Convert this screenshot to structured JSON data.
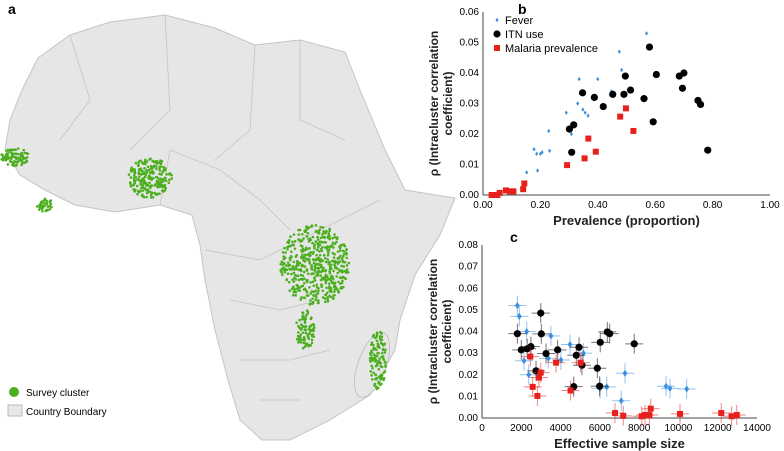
{
  "panel_a": {
    "label": "a",
    "legend": [
      {
        "label": "Survey cluster",
        "color": "#4caf1f"
      },
      {
        "label": "Country Boundary",
        "color": "#e8e8e8"
      }
    ]
  },
  "chart_data": [
    {
      "panel": "b",
      "type": "scatter",
      "xlabel": "Prevalence (proportion)",
      "ylabel": "ρ (Intracluster correlation coefficient)",
      "xlim": [
        0,
        1
      ],
      "ylim": [
        0,
        0.06
      ],
      "xticks": [
        "0.00",
        "0.20",
        "0.40",
        "0.60",
        "0.80",
        "1.00"
      ],
      "yticks": [
        "0.00",
        "0.01",
        "0.02",
        "0.03",
        "0.04",
        "0.05",
        "0.06"
      ],
      "legend_position": "top-left",
      "series": [
        {
          "name": "Fever",
          "color": "#3d8fe0",
          "marker": "diamond",
          "points": [
            [
              0.57,
              0.053
            ],
            [
              0.475,
              0.047
            ],
            [
              0.483,
              0.041
            ],
            [
              0.335,
              0.038
            ],
            [
              0.4,
              0.038
            ],
            [
              0.448,
              0.034
            ],
            [
              0.33,
              0.03
            ],
            [
              0.348,
              0.028
            ],
            [
              0.356,
              0.027
            ],
            [
              0.366,
              0.026
            ],
            [
              0.29,
              0.027
            ],
            [
              0.229,
              0.021
            ],
            [
              0.308,
              0.02
            ],
            [
              0.178,
              0.015
            ],
            [
              0.187,
              0.0135
            ],
            [
              0.2,
              0.0135
            ],
            [
              0.206,
              0.014
            ],
            [
              0.232,
              0.0145
            ],
            [
              0.152,
              0.0074
            ],
            [
              0.19,
              0.008
            ]
          ]
        },
        {
          "name": "ITN use",
          "color": "#000000",
          "marker": "circle",
          "points": [
            [
              0.58,
              0.0485
            ],
            [
              0.496,
              0.039
            ],
            [
              0.604,
              0.0395
            ],
            [
              0.684,
              0.039
            ],
            [
              0.7,
              0.04
            ],
            [
              0.695,
              0.035
            ],
            [
              0.749,
              0.031
            ],
            [
              0.758,
              0.0297
            ],
            [
              0.347,
              0.0335
            ],
            [
              0.388,
              0.032
            ],
            [
              0.452,
              0.033
            ],
            [
              0.491,
              0.033
            ],
            [
              0.514,
              0.0344
            ],
            [
              0.561,
              0.0316
            ],
            [
              0.419,
              0.029
            ],
            [
              0.593,
              0.024
            ],
            [
              0.316,
              0.023
            ],
            [
              0.301,
              0.0216
            ],
            [
              0.309,
              0.014
            ],
            [
              0.783,
              0.0147
            ]
          ]
        },
        {
          "name": "Malaria prevalence",
          "color": "#e8201c",
          "marker": "square",
          "points": [
            [
              0.498,
              0.0284
            ],
            [
              0.478,
              0.0257
            ],
            [
              0.524,
              0.021
            ],
            [
              0.367,
              0.0185
            ],
            [
              0.393,
              0.0142
            ],
            [
              0.354,
              0.012
            ],
            [
              0.293,
              0.0098
            ],
            [
              0.144,
              0.0038
            ],
            [
              0.14,
              0.0019
            ],
            [
              0.03,
              0.0
            ],
            [
              0.05,
              0.0
            ],
            [
              0.058,
              0.0007
            ],
            [
              0.08,
              0.0015
            ],
            [
              0.094,
              0.0012
            ],
            [
              0.106,
              0.0012
            ]
          ]
        }
      ]
    },
    {
      "panel": "c",
      "type": "scatter",
      "xlabel": "Effective sample size",
      "ylabel": "ρ (Intracluster correlation coefficient)",
      "xlim": [
        0,
        14000
      ],
      "ylim": [
        0,
        0.08
      ],
      "xticks": [
        "0",
        "2000",
        "4000",
        "6000",
        "8000",
        "10000",
        "12000",
        "14000"
      ],
      "yticks": [
        "0.00",
        "0.01",
        "0.02",
        "0.03",
        "0.04",
        "0.05",
        "0.06",
        "0.07",
        "0.08"
      ],
      "error_bars": true,
      "series": [
        {
          "color": "#3d8fe0",
          "marker": "diamond",
          "points": [
            [
              1800,
              0.052
            ],
            [
              1900,
              0.047
            ],
            [
              2275,
              0.04
            ],
            [
              3510,
              0.038
            ],
            [
              4480,
              0.034
            ],
            [
              5160,
              0.03
            ],
            [
              2140,
              0.0265
            ],
            [
              3375,
              0.0276
            ],
            [
              4020,
              0.0268
            ],
            [
              2380,
              0.02
            ],
            [
              7280,
              0.0207
            ],
            [
              6010,
              0.0137
            ],
            [
              6350,
              0.0144
            ],
            [
              7090,
              0.008
            ],
            [
              9370,
              0.0147
            ],
            [
              9570,
              0.0137
            ],
            [
              10420,
              0.0134
            ]
          ]
        },
        {
          "color": "#000000",
          "marker": "circle",
          "points": [
            [
              2990,
              0.0485
            ],
            [
              1800,
              0.039
            ],
            [
              3020,
              0.0389
            ],
            [
              6380,
              0.0398
            ],
            [
              6500,
              0.039
            ],
            [
              6020,
              0.035
            ],
            [
              7750,
              0.0343
            ],
            [
              2000,
              0.0315
            ],
            [
              2300,
              0.032
            ],
            [
              2490,
              0.033
            ],
            [
              3850,
              0.0315
            ],
            [
              4940,
              0.0327
            ],
            [
              3260,
              0.0298
            ],
            [
              4800,
              0.029
            ],
            [
              5090,
              0.0244
            ],
            [
              5870,
              0.023
            ],
            [
              2750,
              0.0218
            ],
            [
              4670,
              0.0145
            ],
            [
              5990,
              0.0147
            ]
          ]
        },
        {
          "color": "#e8201c",
          "marker": "square",
          "points": [
            [
              2460,
              0.0284
            ],
            [
              3770,
              0.0256
            ],
            [
              5020,
              0.0256
            ],
            [
              2990,
              0.021
            ],
            [
              2900,
              0.0187
            ],
            [
              2580,
              0.0144
            ],
            [
              4510,
              0.0127
            ],
            [
              2820,
              0.0102
            ],
            [
              6770,
              0.0023
            ],
            [
              7190,
              0.001
            ],
            [
              8130,
              0.0008
            ],
            [
              8300,
              0.0014
            ],
            [
              8520,
              0.0014
            ],
            [
              8590,
              0.0043
            ],
            [
              10080,
              0.0019
            ],
            [
              12180,
              0.0023
            ],
            [
              12710,
              0.0008
            ],
            [
              12970,
              0.0014
            ]
          ]
        }
      ]
    }
  ]
}
